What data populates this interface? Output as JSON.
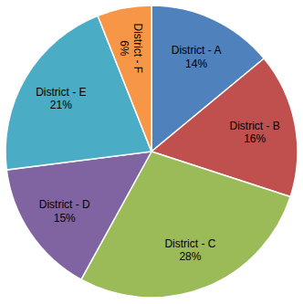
{
  "chart_data": {
    "type": "pie",
    "categories": [
      "District - A",
      "District - B",
      "District - C",
      "District - D",
      "District - E",
      "District - F"
    ],
    "values": [
      14,
      16,
      28,
      15,
      21,
      6
    ],
    "value_labels": [
      "14%",
      "16%",
      "28%",
      "15%",
      "21%",
      "6%"
    ],
    "colors": [
      "#4f81bd",
      "#c0504d",
      "#9bbb59",
      "#8064a2",
      "#4bacc6",
      "#f79646"
    ],
    "data_labels": true
  }
}
